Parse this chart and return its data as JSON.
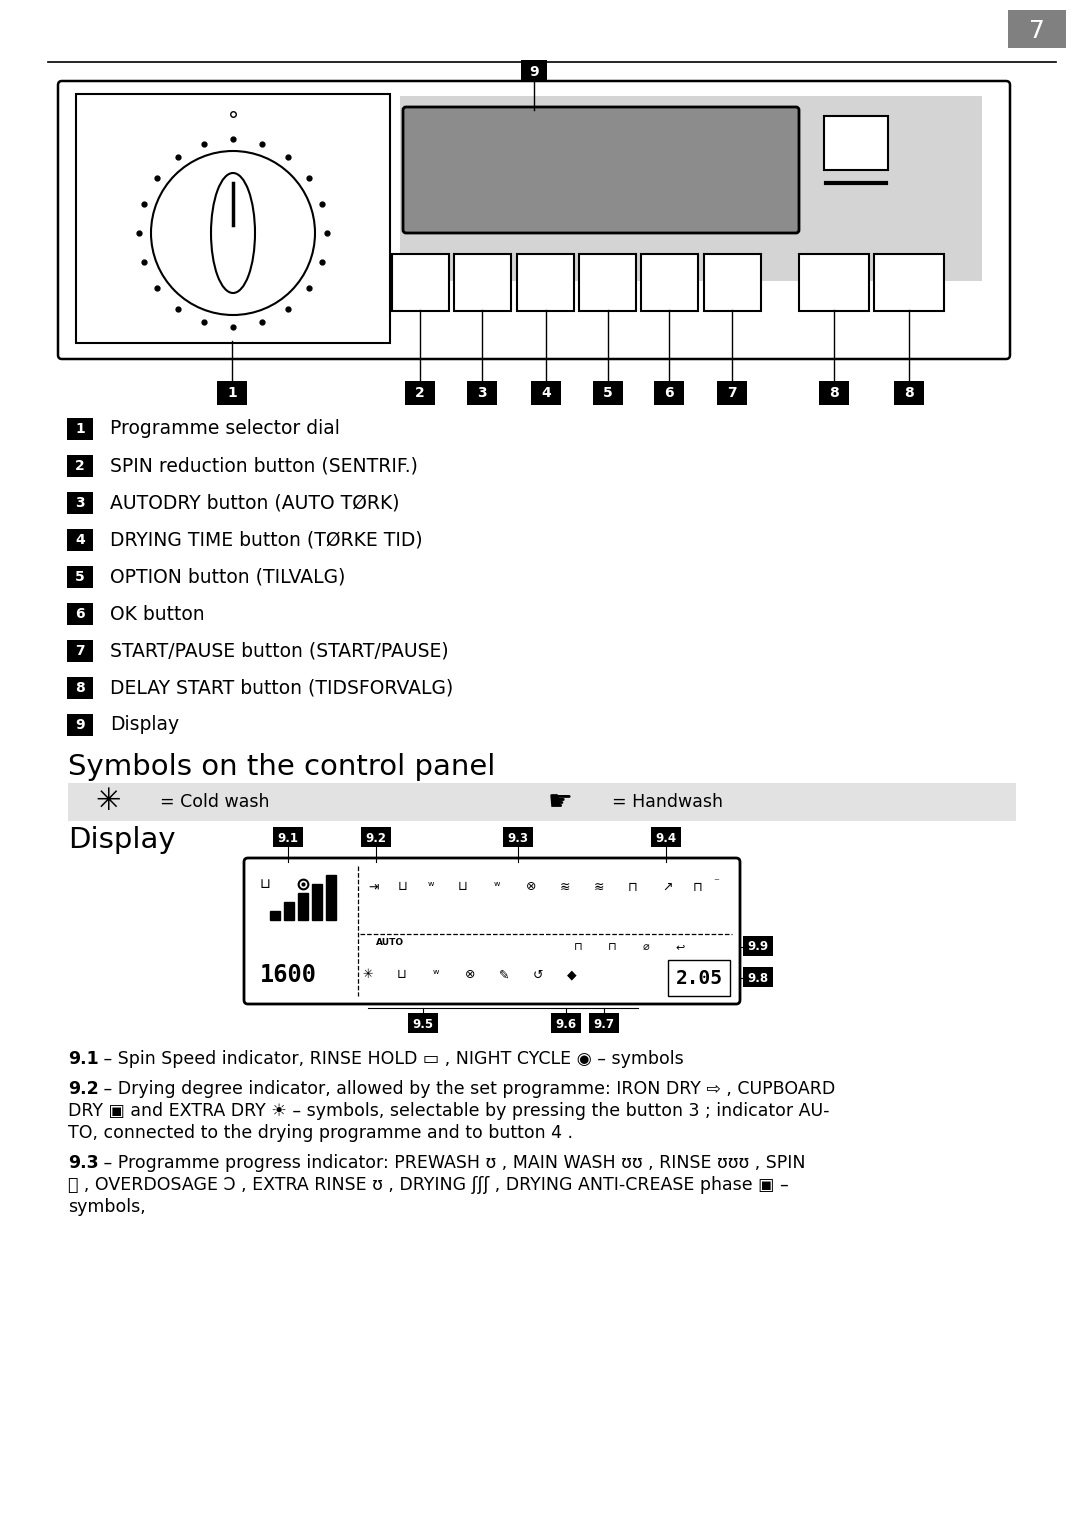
{
  "page_number": "7",
  "bg_color": "#ffffff",
  "numbered_items": [
    {
      "num": "1",
      "text": "Programme selector dial"
    },
    {
      "num": "2",
      "text": "SPIN reduction button (SENTRIF.)"
    },
    {
      "num": "3",
      "text": "AUTODRY button (AUTO TØRK)"
    },
    {
      "num": "4",
      "text": "DRYING TIME button (TØRKE TID)"
    },
    {
      "num": "5",
      "text": "OPTION button (TILVALG)"
    },
    {
      "num": "6",
      "text": "OK button"
    },
    {
      "num": "7",
      "text": "START/PAUSE button (START/PAUSE)"
    },
    {
      "num": "8",
      "text": "DELAY START button (TIDSFORVALG)"
    },
    {
      "num": "9",
      "text": "Display"
    }
  ],
  "section_symbols_title": "Symbols on the control panel",
  "section_display_title": "Display",
  "desc_lines": [
    {
      "bold": "9.1",
      "text": " – Spin Speed indicator, RINSE HOLD ▭ , NIGHT CYCLE ◉ – symbols"
    },
    {
      "bold": "9.2",
      "text": " – Drying degree indicator, allowed by the set programme: IRON DRY ⇨ , CUPBOARD\nDRY ▣ and EXTRA DRY ☀ – symbols, selectable by pressing the button 3 ; indicator AU-\nTO, connected to the drying programme and to button 4 ."
    },
    {
      "bold": "9.3",
      "text": " – Programme progress indicator: PREWASH ʊ , MAIN WASH ʊʊ , RINSE ʊʊʊ , SPIN\nⓈ , OVERDOSAGE Ɔ , EXTRA RINSE ʊ , DRYING ʃʃʃ , DRYING ANTI-CREASE phase ▣ –\nsymbols,"
    }
  ]
}
